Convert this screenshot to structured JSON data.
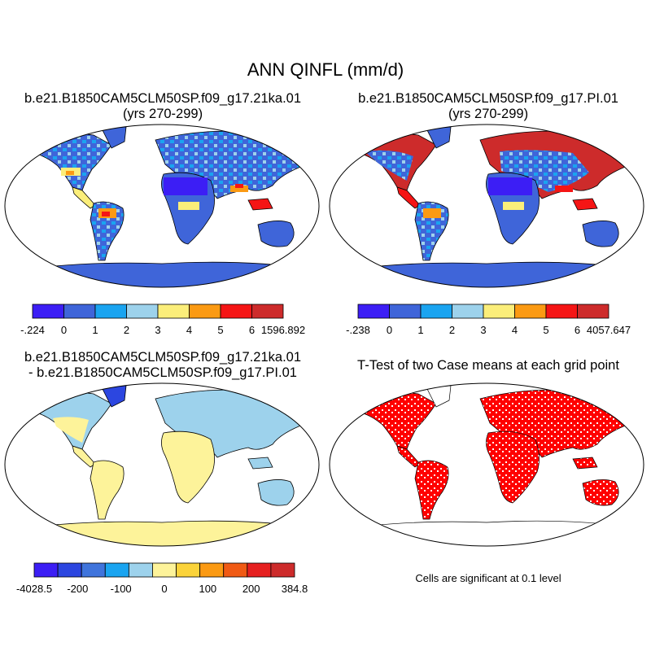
{
  "title": "ANN QINFL (mm/d)",
  "panels": [
    {
      "title_line1": "b.e21.B1850CAM5CLM50SP.f09_g17.21ka.01",
      "title_line2": "(yrs 270-299)",
      "colorbar": {
        "colors": [
          "#3c1ef5",
          "#3f65d9",
          "#1aa4f0",
          "#9dd2ec",
          "#fbee7a",
          "#fb9a13",
          "#f51515",
          "#cd2b2b"
        ],
        "labels": [
          "-.224",
          "0",
          "1",
          "2",
          "3",
          "4",
          "5",
          "6",
          "1596.892"
        ]
      }
    },
    {
      "title_line1": "b.e21.B1850CAM5CLM50SP.f09_g17.PI.01",
      "title_line2": "(yrs 270-299)",
      "colorbar": {
        "colors": [
          "#3c1ef5",
          "#3f65d9",
          "#1aa4f0",
          "#9dd2ec",
          "#fbee7a",
          "#fb9a13",
          "#f51515",
          "#cd2b2b"
        ],
        "labels": [
          "-.238",
          "0",
          "1",
          "2",
          "3",
          "4",
          "5",
          "6",
          "4057.647"
        ]
      }
    },
    {
      "title_line1": "b.e21.B1850CAM5CLM50SP.f09_g17.21ka.01",
      "title_line2": "- b.e21.B1850CAM5CLM50SP.f09_g17.PI.01",
      "colorbar": {
        "colors": [
          "#3c1ef5",
          "#2c46e0",
          "#3f74dc",
          "#1aa4f0",
          "#9dd2ec",
          "#fdf39a",
          "#fbd33a",
          "#fb9a13",
          "#f05a14",
          "#e62020",
          "#cd2b2b"
        ],
        "labels": [
          "-4028.5",
          "",
          "-200",
          "",
          "-100",
          "",
          "0",
          "",
          "100",
          "",
          "200",
          "",
          "384.8"
        ]
      }
    },
    {
      "title_line1": "T-Test of two Case means at each grid point",
      "note": "Cells are significant at 0.1 level",
      "significant_color": "#ff0000"
    }
  ]
}
